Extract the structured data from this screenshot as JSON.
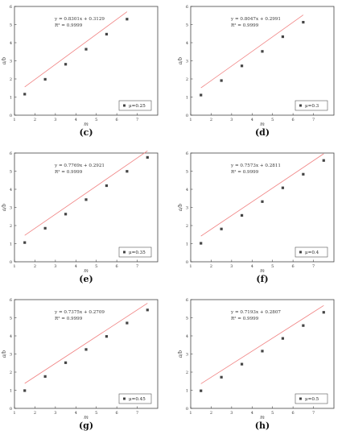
{
  "chart_data": [
    {
      "type": "scatter",
      "panel_label": "(c)",
      "xlabel": "m",
      "ylabel": "a/b",
      "xlim": [
        1,
        8
      ],
      "ylim": [
        0,
        6
      ],
      "xticks": [
        "1",
        "2",
        "3",
        "4",
        "5",
        "6",
        "7"
      ],
      "yticks": [
        "0",
        "1",
        "2",
        "3",
        "4",
        "5",
        "6"
      ],
      "equation": "y = 0.8301x + 0.3129",
      "r2": "R² = 0.9999",
      "legend": {
        "label": "μ=0.25",
        "position": "bottom-right"
      },
      "x": [
        1.5,
        2.5,
        3.5,
        4.5,
        5.5,
        6.5
      ],
      "y": [
        1.16,
        1.98,
        2.81,
        3.64,
        4.47,
        5.3
      ],
      "fit": {
        "slope": 0.8301,
        "intercept": 0.3129,
        "x_range": [
          1.5,
          6.5
        ]
      }
    },
    {
      "type": "scatter",
      "panel_label": "(d)",
      "xlabel": "m",
      "ylabel": "a/b",
      "xlim": [
        1,
        8
      ],
      "ylim": [
        0,
        6
      ],
      "xticks": [
        "1",
        "2",
        "3",
        "4",
        "5",
        "6",
        "7"
      ],
      "yticks": [
        "0",
        "1",
        "2",
        "3",
        "4",
        "5",
        "6"
      ],
      "equation": "y = 0.8047x + 0.2991",
      "r2": "R² = 0.9999",
      "legend": {
        "label": "μ=0.3",
        "position": "bottom-right"
      },
      "x": [
        1.5,
        2.5,
        3.5,
        4.5,
        5.5,
        6.5
      ],
      "y": [
        1.11,
        1.91,
        2.72,
        3.52,
        4.33,
        5.13
      ],
      "fit": {
        "slope": 0.8047,
        "intercept": 0.2991,
        "x_range": [
          1.5,
          6.5
        ]
      }
    },
    {
      "type": "scatter",
      "panel_label": "(e)",
      "xlabel": "m",
      "ylabel": "a/b",
      "xlim": [
        1,
        8
      ],
      "ylim": [
        0,
        6
      ],
      "xticks": [
        "1",
        "2",
        "3",
        "4",
        "5",
        "6",
        "7"
      ],
      "yticks": [
        "0",
        "1",
        "2",
        "3",
        "4",
        "5",
        "6"
      ],
      "equation": "y = 0.7769x + 0.2921",
      "r2": "R² = 0.9999",
      "legend": {
        "label": "μ=0.35",
        "position": "bottom-right"
      },
      "x": [
        1.5,
        2.5,
        3.5,
        4.5,
        5.5,
        6.5,
        7.5
      ],
      "y": [
        1.06,
        1.85,
        2.63,
        3.43,
        4.2,
        4.99,
        5.76
      ],
      "fit": {
        "slope": 0.7769,
        "intercept": 0.2921,
        "x_range": [
          1.5,
          7.5
        ]
      }
    },
    {
      "type": "scatter",
      "panel_label": "(f)",
      "xlabel": "m",
      "ylabel": "a/b",
      "xlim": [
        1,
        8
      ],
      "ylim": [
        0,
        6
      ],
      "xticks": [
        "1",
        "2",
        "3",
        "4",
        "5",
        "6",
        "7"
      ],
      "yticks": [
        "0",
        "1",
        "2",
        "3",
        "4",
        "5",
        "6"
      ],
      "equation": "y = 0.7573x + 0.2811",
      "r2": "R² = 0.9999",
      "legend": {
        "label": "μ=0.4",
        "position": "bottom-right"
      },
      "x": [
        1.5,
        2.5,
        3.5,
        4.5,
        5.5,
        6.5,
        7.5
      ],
      "y": [
        1.02,
        1.81,
        2.56,
        3.32,
        4.08,
        4.83,
        5.59
      ],
      "fit": {
        "slope": 0.7573,
        "intercept": 0.2811,
        "x_range": [
          1.5,
          7.5
        ]
      }
    },
    {
      "type": "scatter",
      "panel_label": "(g)",
      "xlabel": "m",
      "ylabel": "a/b",
      "xlim": [
        1,
        8
      ],
      "ylim": [
        0,
        6
      ],
      "xticks": [
        "1",
        "2",
        "3",
        "4",
        "5",
        "6",
        "7"
      ],
      "yticks": [
        "0",
        "1",
        "2",
        "3",
        "4",
        "5",
        "6"
      ],
      "equation": "y = 0.7375x + 0.2709",
      "r2": "R² = 0.9999",
      "legend": {
        "label": "μ=0.45",
        "position": "bottom-right"
      },
      "x": [
        1.5,
        2.5,
        3.5,
        4.5,
        5.5,
        6.5,
        7.5
      ],
      "y": [
        0.98,
        1.76,
        2.52,
        3.25,
        3.97,
        4.71,
        5.43
      ],
      "fit": {
        "slope": 0.7375,
        "intercept": 0.2709,
        "x_range": [
          1.5,
          7.5
        ]
      }
    },
    {
      "type": "scatter",
      "panel_label": "(h)",
      "xlabel": "m",
      "ylabel": "a/b",
      "xlim": [
        1,
        8
      ],
      "ylim": [
        0,
        6
      ],
      "xticks": [
        "1",
        "2",
        "3",
        "4",
        "5",
        "6",
        "7"
      ],
      "yticks": [
        "0",
        "1",
        "2",
        "3",
        "4",
        "5",
        "6"
      ],
      "equation": "y = 0.7193x + 0.2807",
      "r2": "R² = 0.9999",
      "legend": {
        "label": "μ=0.5",
        "position": "bottom-right"
      },
      "x": [
        1.5,
        2.5,
        3.5,
        4.5,
        5.5,
        6.5,
        7.5
      ],
      "y": [
        0.97,
        1.72,
        2.44,
        3.16,
        3.86,
        4.57,
        5.3
      ],
      "fit": {
        "slope": 0.7193,
        "intercept": 0.2807,
        "x_range": [
          1.5,
          7.5
        ]
      }
    }
  ],
  "colors": {
    "fit_line": "#f08080",
    "points": "#444444",
    "axes": "#444444"
  }
}
